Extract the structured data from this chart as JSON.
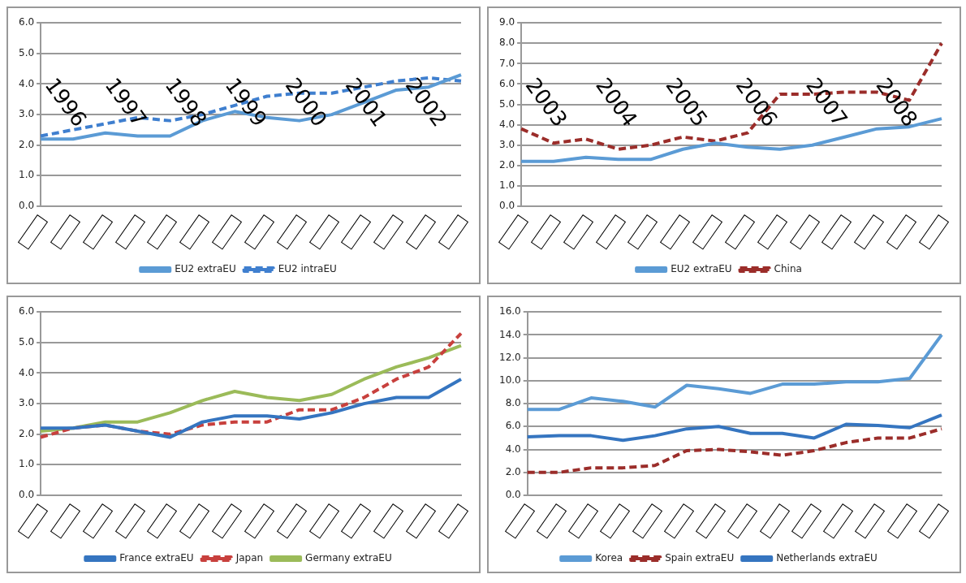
{
  "chart_data": [
    {
      "type": "line",
      "categories": [
        null,
        null,
        null,
        null,
        null,
        null,
        null,
        null,
        null,
        null,
        null,
        null,
        null,
        null
      ],
      "ylim": [
        0,
        6
      ],
      "yticks": [
        {
          "value": 0,
          "label": "0.0"
        },
        {
          "value": 1,
          "label": "1.0"
        },
        {
          "value": 2,
          "label": "2.0"
        },
        {
          "value": 3,
          "label": "3.0"
        },
        {
          "value": 4,
          "label": "4.0"
        },
        {
          "value": 5,
          "label": "5.0"
        },
        {
          "value": 6,
          "label": "6.0"
        }
      ],
      "grid": "y",
      "legend": "bottom",
      "marker": "none",
      "annotations": [
        "1996",
        "1997",
        "1998",
        "1999",
        "2000",
        "2001",
        "2002"
      ],
      "series": [
        {
          "name": "EU2 extraEU",
          "color": "#5b9bd5",
          "line_style": "solid",
          "values": [
            2.2,
            2.2,
            2.4,
            2.3,
            2.3,
            2.8,
            3.1,
            2.9,
            2.8,
            3.0,
            3.4,
            3.8,
            3.9,
            4.3
          ]
        },
        {
          "name": "EU2 intraEU",
          "color": "#3f7fcf",
          "line_style": "dashed",
          "values": [
            2.3,
            2.5,
            2.7,
            2.9,
            2.8,
            3.0,
            3.3,
            3.6,
            3.7,
            3.7,
            3.9,
            4.1,
            4.2,
            4.1
          ]
        }
      ]
    },
    {
      "type": "line",
      "categories": [
        null,
        null,
        null,
        null,
        null,
        null,
        null,
        null,
        null,
        null,
        null,
        null,
        null,
        null
      ],
      "ylim": [
        0,
        9
      ],
      "yticks": [
        {
          "value": 0,
          "label": "0.0"
        },
        {
          "value": 1,
          "label": "1.0"
        },
        {
          "value": 2,
          "label": "2.0"
        },
        {
          "value": 3,
          "label": "3.0"
        },
        {
          "value": 4,
          "label": "4.0"
        },
        {
          "value": 5,
          "label": "5.0"
        },
        {
          "value": 6,
          "label": "6.0"
        },
        {
          "value": 7,
          "label": "7.0"
        },
        {
          "value": 8,
          "label": "8.0"
        },
        {
          "value": 9,
          "label": "9.0"
        }
      ],
      "grid": "y",
      "legend": "bottom",
      "marker": "none",
      "annotations": [
        "2003",
        "2004",
        "2005",
        "2006",
        "2007",
        "2008"
      ],
      "series": [
        {
          "name": "EU2 extraEU",
          "color": "#5b9bd5",
          "line_style": "solid",
          "values": [
            2.2,
            2.2,
            2.4,
            2.3,
            2.3,
            2.8,
            3.1,
            2.9,
            2.8,
            3.0,
            3.4,
            3.8,
            3.9,
            4.3
          ]
        },
        {
          "name": "China",
          "color": "#9b2d2a",
          "line_style": "dashed",
          "values": [
            3.8,
            3.1,
            3.3,
            2.8,
            3.0,
            3.4,
            3.2,
            3.6,
            5.5,
            5.5,
            5.6,
            5.6,
            5.2,
            8.0
          ]
        }
      ]
    },
    {
      "type": "line",
      "categories": [
        null,
        null,
        null,
        null,
        null,
        null,
        null,
        null,
        null,
        null,
        null,
        null,
        null,
        null
      ],
      "ylim": [
        0,
        6
      ],
      "yticks": [
        {
          "value": 0,
          "label": "0.0"
        },
        {
          "value": 1,
          "label": "1.0"
        },
        {
          "value": 2,
          "label": "2.0"
        },
        {
          "value": 3,
          "label": "3.0"
        },
        {
          "value": 4,
          "label": "4.0"
        },
        {
          "value": 5,
          "label": "5.0"
        },
        {
          "value": 6,
          "label": "6.0"
        }
      ],
      "grid": "y",
      "legend": "bottom",
      "marker": "none",
      "series": [
        {
          "name": "France extraEU",
          "color": "#3575c0",
          "line_style": "solid",
          "values": [
            2.2,
            2.2,
            2.3,
            2.1,
            1.9,
            2.4,
            2.6,
            2.6,
            2.5,
            2.7,
            3.0,
            3.2,
            3.2,
            3.8
          ]
        },
        {
          "name": "Japan",
          "color": "#c8403d",
          "line_style": "dashed",
          "values": [
            1.9,
            2.2,
            2.3,
            2.1,
            2.0,
            2.3,
            2.4,
            2.4,
            2.8,
            2.8,
            3.2,
            3.8,
            4.2,
            5.3
          ]
        },
        {
          "name": "Germany extraEU",
          "color": "#9bbb59",
          "line_style": "solid",
          "values": [
            2.1,
            2.2,
            2.4,
            2.4,
            2.7,
            3.1,
            3.4,
            3.2,
            3.1,
            3.3,
            3.8,
            4.2,
            4.5,
            4.9
          ]
        }
      ]
    },
    {
      "type": "line",
      "categories": [
        null,
        null,
        null,
        null,
        null,
        null,
        null,
        null,
        null,
        null,
        null,
        null,
        null,
        null
      ],
      "ylim": [
        0,
        16
      ],
      "yticks": [
        {
          "value": 0,
          "label": "0.0"
        },
        {
          "value": 2,
          "label": "2.0"
        },
        {
          "value": 4,
          "label": "4.0"
        },
        {
          "value": 6,
          "label": "6.0"
        },
        {
          "value": 8,
          "label": "8.0"
        },
        {
          "value": 10,
          "label": "10.0"
        },
        {
          "value": 12,
          "label": "12.0"
        },
        {
          "value": 14,
          "label": "14.0"
        },
        {
          "value": 16,
          "label": "16.0"
        }
      ],
      "grid": "y",
      "legend": "bottom",
      "marker": "none",
      "series": [
        {
          "name": "Korea",
          "color": "#5b9bd5",
          "line_style": "solid",
          "values": [
            7.5,
            7.5,
            8.5,
            8.2,
            7.7,
            9.6,
            9.3,
            8.9,
            9.7,
            9.7,
            9.9,
            9.9,
            10.2,
            14.0
          ]
        },
        {
          "name": "Spain extraEU",
          "color": "#9b2d2a",
          "line_style": "dashed",
          "values": [
            2.0,
            2.0,
            2.4,
            2.4,
            2.6,
            3.9,
            4.0,
            3.8,
            3.5,
            3.9,
            4.6,
            5.0,
            5.0,
            5.8
          ]
        },
        {
          "name": "Netherlands extraEU",
          "color": "#3575c0",
          "line_style": "solid",
          "values": [
            5.1,
            5.2,
            5.2,
            4.8,
            5.2,
            5.8,
            6.0,
            5.4,
            5.4,
            5.0,
            6.2,
            6.1,
            5.9,
            7.0
          ]
        }
      ]
    }
  ]
}
